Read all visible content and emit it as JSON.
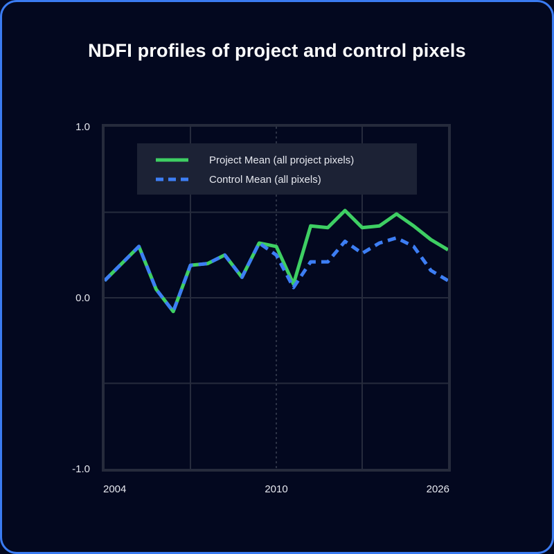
{
  "chart_data": {
    "type": "line",
    "title": "NDFI profiles of project and control pixels",
    "xlabel": "",
    "ylabel": "",
    "xlim": [
      0,
      20
    ],
    "ylim": [
      -1.0,
      1.0
    ],
    "x_ticks": [
      {
        "pos": 0,
        "label": "2004"
      },
      {
        "pos": 10,
        "label": "2010"
      },
      {
        "pos": 20,
        "label": "2026"
      }
    ],
    "y_ticks": [
      {
        "value": 1.0,
        "label": "1.0"
      },
      {
        "value": 0.0,
        "label": "0.0"
      },
      {
        "value": -1.0,
        "label": "-1.0"
      }
    ],
    "grid": true,
    "legend_position": "top-left",
    "series": [
      {
        "name": "Project Mean (all project pixels)",
        "color": "#3ecf63",
        "style": "solid",
        "x": [
          0,
          1,
          2,
          3,
          4,
          5,
          6,
          7,
          8,
          9,
          10,
          11,
          12,
          13,
          14,
          15,
          16,
          17,
          18,
          19,
          20
        ],
        "values": [
          0.1,
          0.2,
          0.3,
          0.05,
          -0.08,
          0.19,
          0.2,
          0.25,
          0.12,
          0.32,
          0.3,
          0.08,
          0.42,
          0.41,
          0.51,
          0.41,
          0.42,
          0.49,
          0.42,
          0.34,
          0.28
        ]
      },
      {
        "name": "Control Mean (all pixels)",
        "color": "#3d7ef4",
        "style": "dashed",
        "x": [
          0,
          1,
          2,
          3,
          4,
          5,
          6,
          7,
          8,
          9,
          10,
          11,
          12,
          13,
          14,
          15,
          16,
          17,
          18,
          19,
          20
        ],
        "values": [
          0.1,
          0.2,
          0.3,
          0.05,
          -0.08,
          0.19,
          0.2,
          0.25,
          0.12,
          0.32,
          0.25,
          0.06,
          0.21,
          0.21,
          0.33,
          0.26,
          0.32,
          0.35,
          0.3,
          0.16,
          0.1
        ]
      }
    ]
  }
}
